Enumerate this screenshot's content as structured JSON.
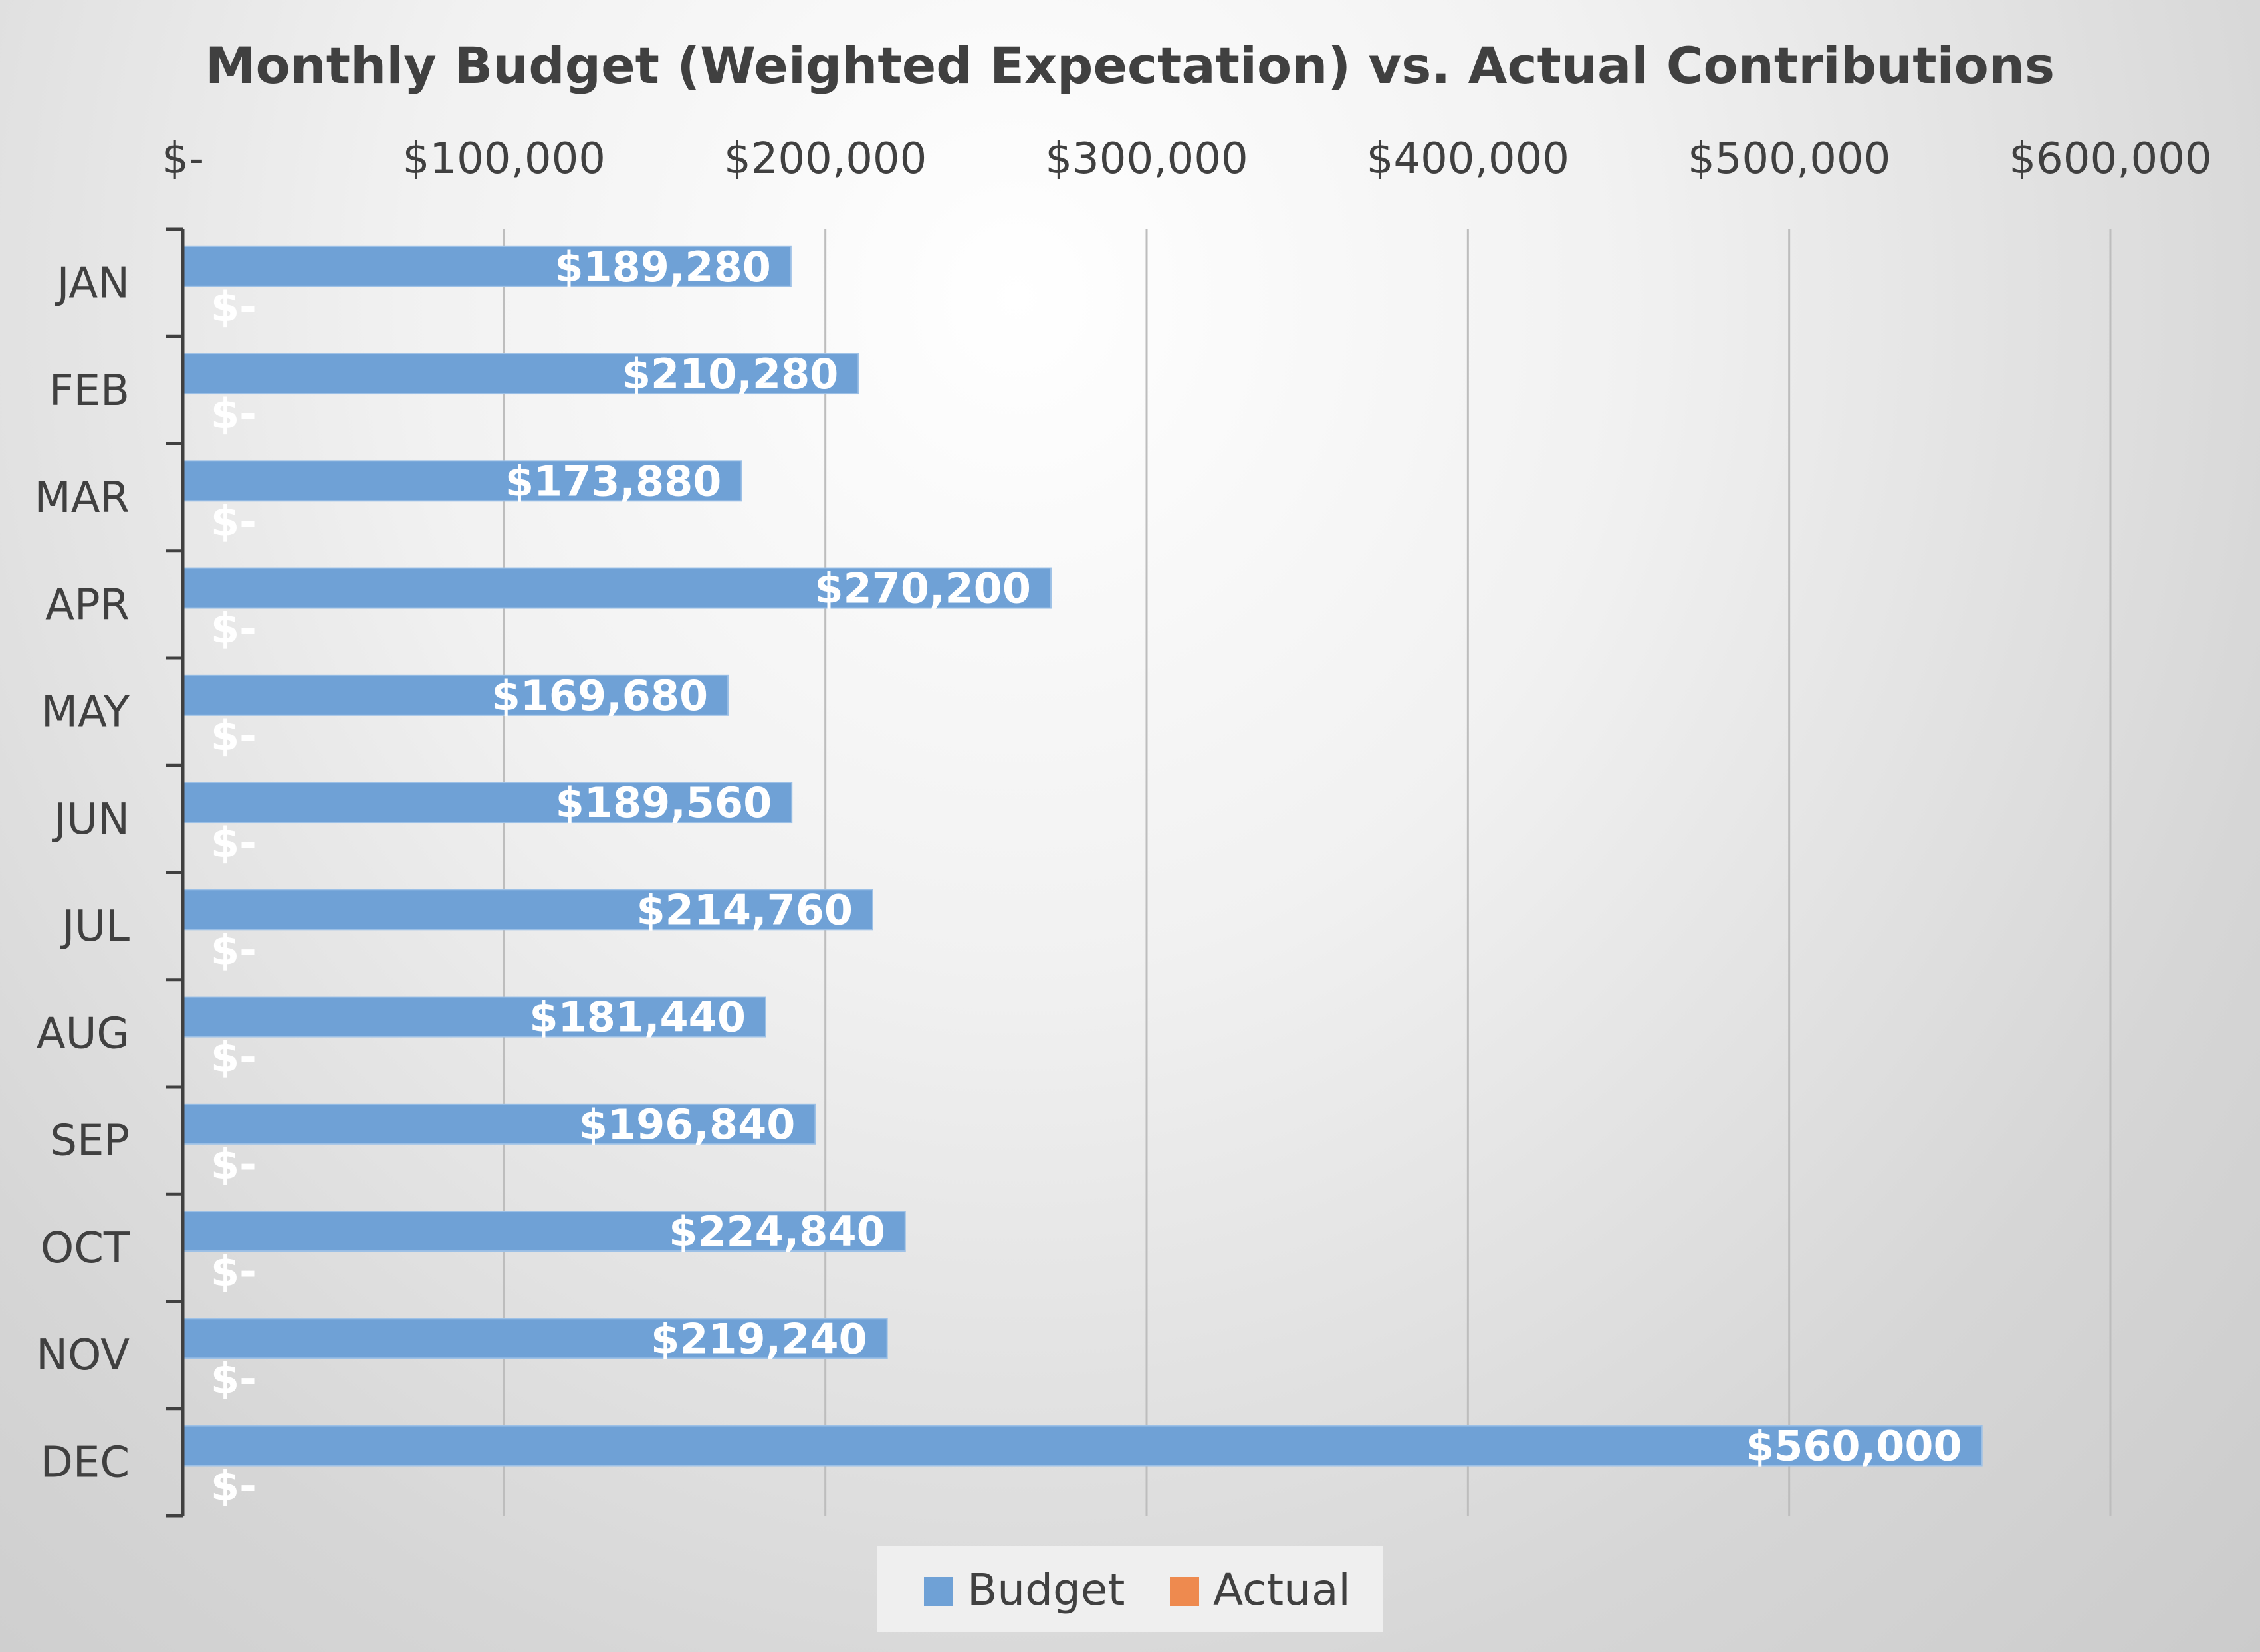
{
  "chart_data": {
    "type": "bar",
    "orientation": "horizontal",
    "title": "Monthly Budget (Weighted Expectation) vs. Actual Contributions",
    "categories": [
      "JAN",
      "FEB",
      "MAR",
      "APR",
      "MAY",
      "JUN",
      "JUL",
      "AUG",
      "SEP",
      "OCT",
      "NOV",
      "DEC"
    ],
    "series": [
      {
        "name": "Budget",
        "color": "#6fa1d6",
        "values": [
          189280,
          210280,
          173880,
          270200,
          169680,
          189560,
          214760,
          181440,
          196840,
          224840,
          219240,
          560000
        ],
        "labels": [
          "$189,280",
          "$210,280",
          "$173,880",
          "$270,200",
          "$169,680",
          "$189,560",
          "$214,760",
          "$181,440",
          "$196,840",
          "$224,840",
          "$219,240",
          "$560,000"
        ]
      },
      {
        "name": "Actual",
        "color": "#ee8a4f",
        "values": [
          0,
          0,
          0,
          0,
          0,
          0,
          0,
          0,
          0,
          0,
          0,
          0
        ],
        "labels": [
          "$-",
          "$-",
          "$-",
          "$-",
          "$-",
          "$-",
          "$-",
          "$-",
          "$-",
          "$-",
          "$-",
          "$-"
        ]
      }
    ],
    "x_axis": {
      "position": "top",
      "range": [
        0,
        600000
      ],
      "ticks": [
        0,
        100000,
        200000,
        300000,
        400000,
        500000,
        600000
      ],
      "tick_labels": [
        "$-",
        "$100,000",
        "$200,000",
        "$300,000",
        "$400,000",
        "$500,000",
        "$600,000"
      ]
    },
    "grid": true,
    "legend": {
      "position": "bottom",
      "entries": [
        "Budget",
        "Actual"
      ]
    }
  }
}
